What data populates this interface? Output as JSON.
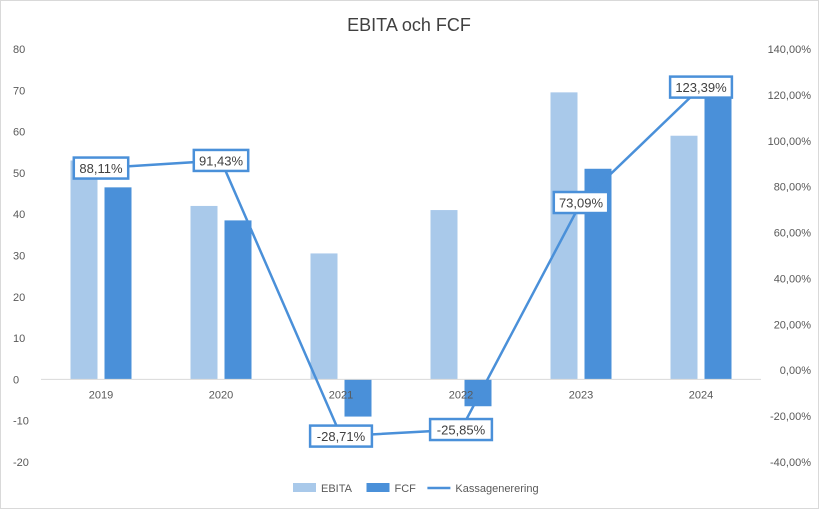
{
  "chart_data": {
    "type": "bar",
    "title": "EBITA och FCF",
    "categories": [
      "2019",
      "2020",
      "2021",
      "2022",
      "2023",
      "2024"
    ],
    "series": [
      {
        "name": "EBITA",
        "kind": "bar",
        "axis": "left",
        "color": "#a9c9ea",
        "values": [
          53,
          42,
          30.5,
          41,
          69.5,
          59
        ]
      },
      {
        "name": "FCF",
        "kind": "bar",
        "axis": "left",
        "color": "#4a90d9",
        "values": [
          46.5,
          38.5,
          -9,
          -6.5,
          51,
          73
        ]
      },
      {
        "name": "Kassagenerering",
        "kind": "line",
        "axis": "right",
        "color": "#4a90d9",
        "values": [
          88.11,
          91.43,
          -28.71,
          -25.85,
          73.09,
          123.39
        ],
        "labels": [
          "88,11%",
          "91,43%",
          "-28,71%",
          "-25,85%",
          "73,09%",
          "123,39%"
        ]
      }
    ],
    "y_left": {
      "min": -20,
      "max": 80,
      "ticks": [
        "-20",
        "-10",
        "0",
        "10",
        "20",
        "30",
        "40",
        "50",
        "60",
        "70",
        "80"
      ]
    },
    "y_right": {
      "min": -40,
      "max": 140,
      "ticks": [
        "-40,00%",
        "-20,00%",
        "0,00%",
        "20,00%",
        "40,00%",
        "60,00%",
        "80,00%",
        "100,00%",
        "120,00%",
        "140,00%"
      ]
    },
    "legend_position": "bottom",
    "grid": false
  }
}
